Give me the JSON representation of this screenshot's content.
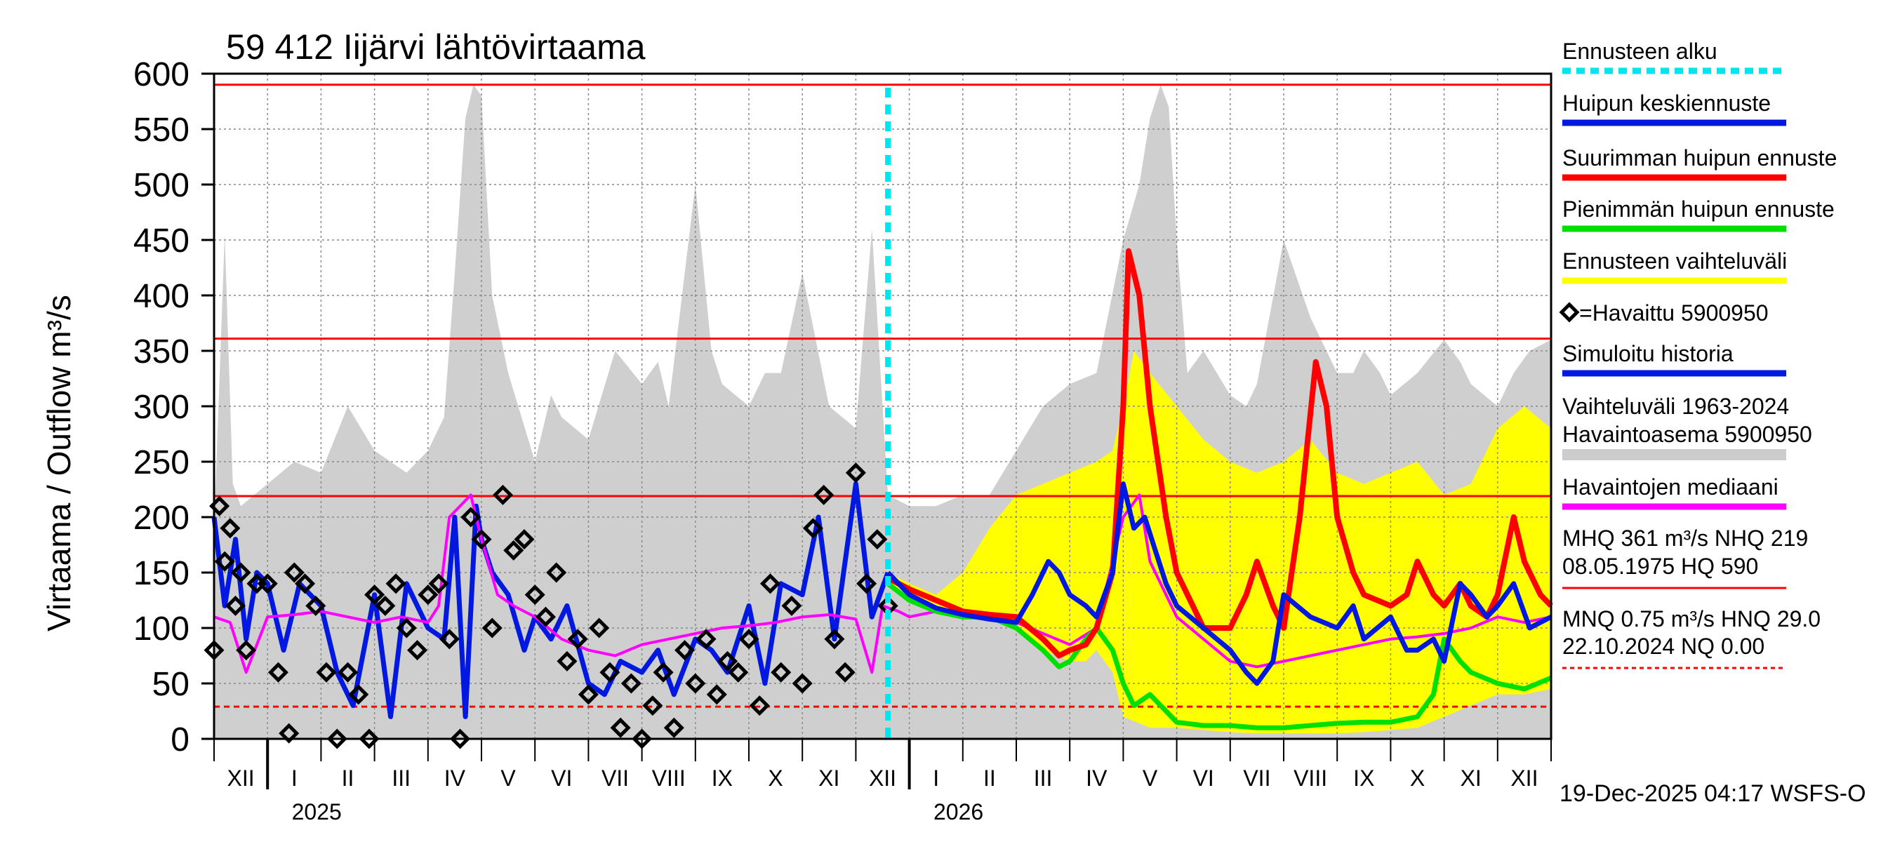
{
  "chart_data": {
    "type": "line",
    "title": "59 412 Iijärvi lähtövirtaama",
    "ylabel": "Virtaama / Outflow    m³/s",
    "ylim": [
      0,
      600
    ],
    "yticks": [
      0,
      50,
      100,
      150,
      200,
      250,
      300,
      350,
      400,
      450,
      500,
      550,
      600
    ],
    "x_range_months": [
      0,
      25
    ],
    "month_labels": [
      "XII",
      "I",
      "II",
      "III",
      "IV",
      "V",
      "VI",
      "VII",
      "VIII",
      "IX",
      "X",
      "XI",
      "XII",
      "I",
      "II",
      "III",
      "IV",
      "V",
      "VI",
      "VII",
      "VIII",
      "IX",
      "X",
      "XI",
      "XII"
    ],
    "year_labels": [
      {
        "label": "2025",
        "month": 1
      },
      {
        "label": "2026",
        "month": 13
      }
    ],
    "forecast_start_month": 12.6,
    "reference_lines": [
      {
        "name": "HQ",
        "value": 590,
        "style": "solid"
      },
      {
        "name": "MHQ",
        "value": 361,
        "style": "solid"
      },
      {
        "name": "NHQ",
        "value": 219,
        "style": "solid"
      },
      {
        "name": "HNQ",
        "value": 29,
        "style": "dashed"
      }
    ],
    "legend": [
      {
        "label": "Ennusteen alku",
        "color": "#00e5ee",
        "style": "dashed"
      },
      {
        "label": "Huipun keskiennuste",
        "color": "#0018e0",
        "style": "solid"
      },
      {
        "label": "Suurimman huipun ennuste",
        "color": "#ff0000",
        "style": "solid"
      },
      {
        "label": "Pienimmän huipun ennuste",
        "color": "#00e000",
        "style": "solid"
      },
      {
        "label": "Ennusteen vaihteluväli",
        "color": "#ffff00",
        "style": "solid"
      },
      {
        "label": "=Havaittu 5900950",
        "color": "#000000",
        "style": "marker"
      },
      {
        "label": "Simuloitu historia",
        "color": "#0018e0",
        "style": "solid"
      },
      {
        "label": "Vaihteluväli 1963-2024",
        "color": "",
        "style": "text"
      },
      {
        "label": "Havaintoasema 5900950",
        "color": "#cccccc",
        "style": "solid"
      },
      {
        "label": "Havaintojen mediaani",
        "color": "#ff00ff",
        "style": "solid"
      }
    ],
    "stats": [
      "MHQ  361 m³/s NHQ  219",
      "08.05.1975 HQ  590",
      "MNQ 0.75 m³/s HNQ 29.0",
      "22.10.2024 NQ 0.00"
    ],
    "footer": "19-Dec-2025 04:17 WSFS-O",
    "series": {
      "history_band_upper": {
        "x": [
          0,
          0.2,
          0.35,
          0.5,
          1,
          1.5,
          2,
          2.5,
          3,
          3.3,
          3.6,
          4,
          4.3,
          4.5,
          4.7,
          4.85,
          5,
          5.2,
          5.5,
          6,
          6.3,
          6.5,
          7,
          7.5,
          8,
          8.3,
          8.5,
          9,
          9.3,
          9.5,
          10,
          10.3,
          10.6,
          11,
          11.5,
          12,
          12.3,
          12.6,
          13,
          13.5,
          14,
          14.5,
          15,
          15.5,
          16,
          16.5,
          17,
          17.3,
          17.5,
          17.7,
          17.85,
          18,
          18.2,
          18.5,
          19,
          19.3,
          19.5,
          20,
          20.5,
          21,
          21.3,
          21.5,
          21.8,
          22,
          22.5,
          23,
          23.3,
          23.5,
          24,
          24.3,
          24.6,
          25
        ],
        "y": [
          190,
          455,
          230,
          210,
          230,
          250,
          240,
          300,
          260,
          250,
          240,
          260,
          290,
          420,
          560,
          590,
          580,
          400,
          330,
          250,
          310,
          290,
          270,
          350,
          320,
          340,
          300,
          500,
          350,
          320,
          300,
          330,
          330,
          420,
          300,
          280,
          460,
          220,
          210,
          210,
          220,
          220,
          260,
          300,
          320,
          330,
          450,
          500,
          560,
          590,
          570,
          450,
          330,
          350,
          310,
          300,
          320,
          450,
          380,
          330,
          330,
          350,
          330,
          310,
          330,
          360,
          340,
          320,
          300,
          330,
          350,
          360
        ]
      },
      "history_band_lower": {
        "x": [
          0,
          25
        ],
        "y": [
          0,
          0
        ]
      },
      "forecast_band_upper": {
        "x": [
          12.6,
          13,
          13.5,
          14,
          14.5,
          15,
          15.5,
          16,
          16.5,
          16.8,
          17,
          17.2,
          17.5,
          18,
          18.5,
          19,
          19.5,
          20,
          20.5,
          21,
          21.5,
          22,
          22.5,
          23,
          23.5,
          24,
          24.5,
          25
        ],
        "y": [
          150,
          140,
          130,
          150,
          190,
          220,
          230,
          240,
          250,
          260,
          300,
          350,
          330,
          300,
          270,
          250,
          240,
          250,
          270,
          240,
          230,
          240,
          250,
          220,
          230,
          280,
          300,
          280
        ]
      },
      "forecast_band_lower": {
        "x": [
          12.6,
          13,
          13.5,
          14,
          14.5,
          15,
          15.5,
          16,
          16.3,
          16.5,
          16.8,
          17,
          17.5,
          18,
          18.5,
          19,
          19.5,
          20,
          20.5,
          21,
          21.5,
          22,
          22.5,
          23,
          23.5,
          24,
          24.5,
          25
        ],
        "y": [
          140,
          130,
          120,
          110,
          110,
          100,
          80,
          70,
          70,
          80,
          60,
          20,
          10,
          10,
          8,
          6,
          5,
          5,
          5,
          5,
          6,
          8,
          10,
          20,
          30,
          40,
          40,
          45
        ]
      },
      "max_peak_forecast": {
        "x": [
          12.6,
          13,
          13.5,
          14,
          14.5,
          15,
          15.5,
          15.8,
          16,
          16.3,
          16.5,
          16.8,
          17,
          17.1,
          17.3,
          17.5,
          17.8,
          18,
          18.3,
          18.5,
          19,
          19.3,
          19.5,
          19.8,
          20,
          20.3,
          20.6,
          20.8,
          21,
          21.3,
          21.5,
          22,
          22.3,
          22.5,
          22.8,
          23,
          23.3,
          23.5,
          23.8,
          24,
          24.3,
          24.5,
          24.8,
          25
        ],
        "y": [
          145,
          135,
          125,
          115,
          112,
          110,
          90,
          75,
          80,
          85,
          100,
          150,
          300,
          440,
          400,
          300,
          200,
          150,
          120,
          100,
          100,
          130,
          160,
          120,
          100,
          200,
          340,
          300,
          200,
          150,
          130,
          120,
          130,
          160,
          130,
          120,
          140,
          120,
          110,
          130,
          200,
          160,
          130,
          120
        ]
      },
      "min_peak_forecast": {
        "x": [
          12.6,
          13,
          13.5,
          14,
          14.5,
          15,
          15.5,
          15.8,
          16,
          16.3,
          16.5,
          16.8,
          17,
          17.2,
          17.5,
          17.8,
          18,
          18.5,
          19,
          19.5,
          20,
          20.5,
          21,
          21.5,
          22,
          22.5,
          22.8,
          23,
          23.3,
          23.5,
          24,
          24.5,
          25
        ],
        "y": [
          140,
          125,
          115,
          110,
          110,
          100,
          80,
          65,
          70,
          90,
          100,
          80,
          50,
          30,
          40,
          25,
          15,
          12,
          12,
          10,
          10,
          12,
          14,
          15,
          15,
          20,
          40,
          90,
          70,
          60,
          50,
          45,
          55
        ]
      },
      "mean_peak_forecast": {
        "x": [
          12.6,
          13,
          13.5,
          14,
          14.5,
          15,
          15.3,
          15.6,
          15.8,
          16,
          16.3,
          16.5,
          16.8,
          17,
          17.2,
          17.4,
          17.6,
          17.8,
          18,
          18.5,
          19,
          19.3,
          19.5,
          19.8,
          20,
          20.5,
          21,
          21.3,
          21.5,
          22,
          22.3,
          22.5,
          22.8,
          23,
          23.3,
          23.5,
          23.8,
          24,
          24.3,
          24.6,
          25
        ],
        "y": [
          150,
          130,
          118,
          112,
          108,
          105,
          130,
          160,
          150,
          130,
          120,
          110,
          150,
          230,
          190,
          200,
          170,
          140,
          120,
          100,
          80,
          60,
          50,
          70,
          130,
          110,
          100,
          120,
          90,
          110,
          80,
          80,
          90,
          70,
          140,
          130,
          110,
          120,
          140,
          100,
          110
        ]
      },
      "median": {
        "x": [
          0,
          0.3,
          0.6,
          1,
          1.5,
          2,
          2.5,
          3,
          3.5,
          4,
          4.2,
          4.4,
          4.6,
          4.8,
          5,
          5.3,
          5.6,
          6,
          6.5,
          7,
          7.5,
          8,
          8.5,
          9,
          9.5,
          10,
          10.5,
          11,
          11.5,
          12,
          12.3,
          12.5,
          12.8,
          13,
          13.5,
          14,
          14.5,
          15,
          15.5,
          16,
          16.5,
          17,
          17.3,
          17.5,
          18,
          18.5,
          19,
          19.5,
          20,
          20.5,
          21,
          21.5,
          22,
          22.5,
          23,
          23.5,
          24,
          24.5,
          25
        ],
        "y": [
          110,
          105,
          60,
          110,
          112,
          115,
          110,
          105,
          110,
          105,
          120,
          200,
          210,
          220,
          180,
          130,
          120,
          110,
          90,
          80,
          75,
          85,
          90,
          95,
          100,
          102,
          105,
          110,
          112,
          108,
          60,
          120,
          115,
          110,
          115,
          112,
          108,
          105,
          95,
          85,
          100,
          200,
          220,
          160,
          110,
          90,
          70,
          65,
          70,
          75,
          80,
          85,
          90,
          92,
          95,
          100,
          110,
          105,
          110
        ]
      },
      "simulated_history": {
        "x": [
          0,
          0.2,
          0.4,
          0.6,
          0.8,
          1,
          1.3,
          1.6,
          2,
          2.3,
          2.6,
          3,
          3.3,
          3.6,
          4,
          4.3,
          4.5,
          4.7,
          4.9,
          5,
          5.2,
          5.5,
          5.8,
          6,
          6.3,
          6.6,
          7,
          7.3,
          7.6,
          8,
          8.3,
          8.6,
          9,
          9.3,
          9.6,
          10,
          10.3,
          10.6,
          11,
          11.3,
          11.6,
          12,
          12.3,
          12.6
        ],
        "y": [
          200,
          120,
          180,
          90,
          150,
          140,
          80,
          140,
          120,
          60,
          30,
          130,
          20,
          140,
          100,
          90,
          200,
          20,
          210,
          180,
          150,
          130,
          80,
          110,
          90,
          120,
          50,
          40,
          70,
          60,
          80,
          40,
          90,
          80,
          60,
          120,
          50,
          140,
          130,
          200,
          90,
          230,
          110,
          150
        ]
      },
      "observed": {
        "x": [
          0,
          0.1,
          0.2,
          0.3,
          0.4,
          0.5,
          0.6,
          0.8,
          1,
          1.2,
          1.4,
          1.5,
          1.7,
          1.9,
          2.1,
          2.3,
          2.5,
          2.7,
          2.9,
          3,
          3.2,
          3.4,
          3.6,
          3.8,
          4,
          4.2,
          4.4,
          4.6,
          4.8,
          5,
          5.2,
          5.4,
          5.6,
          5.8,
          6,
          6.2,
          6.4,
          6.6,
          6.8,
          7,
          7.2,
          7.4,
          7.6,
          7.8,
          8,
          8.2,
          8.4,
          8.6,
          8.8,
          9,
          9.2,
          9.4,
          9.6,
          9.8,
          10,
          10.2,
          10.4,
          10.6,
          10.8,
          11,
          11.2,
          11.4,
          11.6,
          11.8,
          12,
          12.2,
          12.4,
          12.6
        ],
        "y": [
          80,
          210,
          160,
          190,
          120,
          150,
          80,
          140,
          140,
          60,
          5,
          150,
          140,
          120,
          60,
          0,
          60,
          40,
          0,
          130,
          120,
          140,
          100,
          80,
          130,
          140,
          90,
          0,
          200,
          180,
          100,
          220,
          170,
          180,
          130,
          110,
          150,
          70,
          90,
          40,
          100,
          60,
          10,
          50,
          0,
          30,
          60,
          10,
          80,
          50,
          90,
          40,
          70,
          60,
          90,
          30,
          140,
          60,
          120,
          50,
          190,
          220,
          90,
          60,
          240,
          140,
          180,
          120
        ]
      }
    }
  }
}
